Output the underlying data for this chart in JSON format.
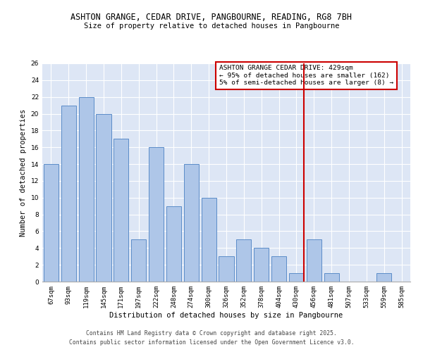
{
  "title": "ASHTON GRANGE, CEDAR DRIVE, PANGBOURNE, READING, RG8 7BH",
  "subtitle": "Size of property relative to detached houses in Pangbourne",
  "xlabel": "Distribution of detached houses by size in Pangbourne",
  "ylabel": "Number of detached properties",
  "categories": [
    "67sqm",
    "93sqm",
    "119sqm",
    "145sqm",
    "171sqm",
    "197sqm",
    "222sqm",
    "248sqm",
    "274sqm",
    "300sqm",
    "326sqm",
    "352sqm",
    "378sqm",
    "404sqm",
    "430sqm",
    "456sqm",
    "481sqm",
    "507sqm",
    "533sqm",
    "559sqm",
    "585sqm"
  ],
  "values": [
    14,
    21,
    22,
    20,
    17,
    5,
    16,
    9,
    14,
    10,
    3,
    5,
    4,
    3,
    1,
    5,
    1,
    0,
    0,
    1,
    0
  ],
  "bar_color": "#aec6e8",
  "bar_edge_color": "#5b8cc8",
  "background_color": "#ffffff",
  "plot_bg_color": "#dde6f5",
  "grid_color": "#ffffff",
  "vline_x_index": 14,
  "vline_color": "#cc0000",
  "annotation_text": "ASHTON GRANGE CEDAR DRIVE: 429sqm\n← 95% of detached houses are smaller (162)\n5% of semi-detached houses are larger (8) →",
  "annotation_box_color": "#ffffff",
  "annotation_box_edge_color": "#cc0000",
  "ylim": [
    0,
    26
  ],
  "yticks": [
    0,
    2,
    4,
    6,
    8,
    10,
    12,
    14,
    16,
    18,
    20,
    22,
    24,
    26
  ],
  "footer1": "Contains HM Land Registry data © Crown copyright and database right 2025.",
  "footer2": "Contains public sector information licensed under the Open Government Licence v3.0.",
  "title_fontsize": 8.5,
  "subtitle_fontsize": 7.5,
  "axis_label_fontsize": 7.5,
  "tick_fontsize": 6.5,
  "annotation_fontsize": 6.8,
  "footer_fontsize": 5.8
}
